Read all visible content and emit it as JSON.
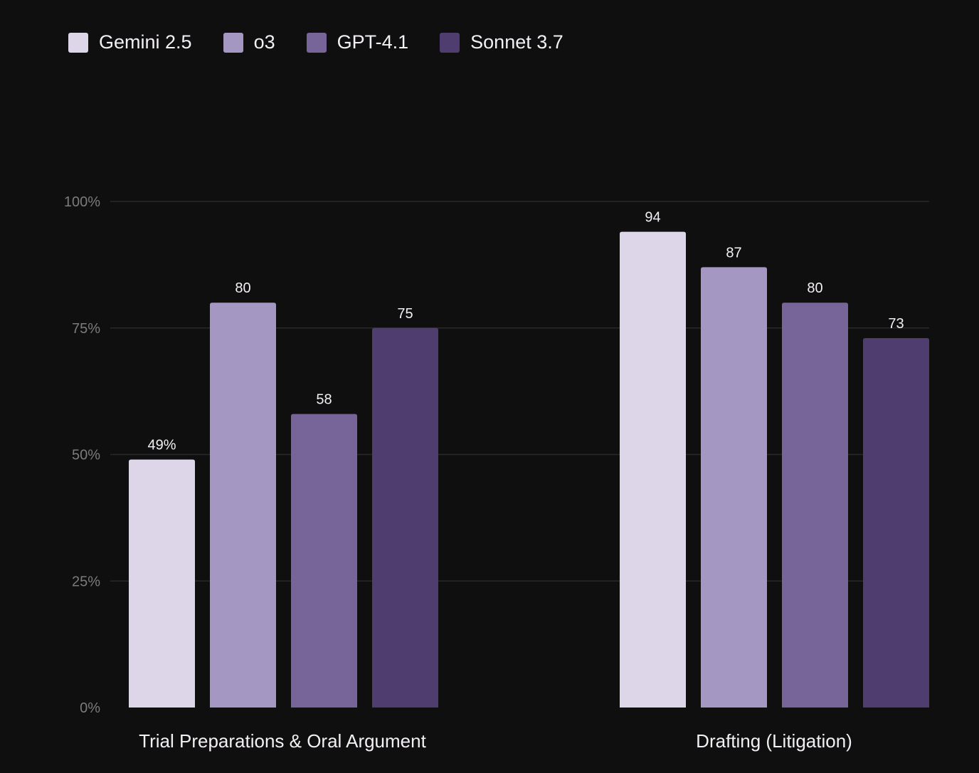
{
  "chart_data": {
    "type": "bar",
    "categories": [
      "Trial Preparations & Oral Argument",
      "Drafting (Litigation)"
    ],
    "series": [
      {
        "name": "Gemini 2.5",
        "color": "#ddd5e8",
        "values": [
          49,
          94
        ],
        "labels": [
          "49%",
          "94"
        ]
      },
      {
        "name": "o3",
        "color": "#a497c1",
        "values": [
          80,
          87
        ],
        "labels": [
          "80",
          "87"
        ]
      },
      {
        "name": "GPT-4.1",
        "color": "#776599",
        "values": [
          58,
          80
        ],
        "labels": [
          "58",
          "80"
        ]
      },
      {
        "name": "Sonnet 3.7",
        "color": "#4f3d70",
        "values": [
          75,
          73
        ],
        "labels": [
          "75",
          "73"
        ]
      }
    ],
    "yticks": [
      0,
      25,
      50,
      75,
      100
    ],
    "ytick_labels": [
      "0%",
      "25%",
      "50%",
      "75%",
      "100%"
    ],
    "ylim": [
      0,
      100
    ],
    "grid": true,
    "legend": "top-left",
    "title": "",
    "xlabel": "",
    "ylabel": ""
  }
}
